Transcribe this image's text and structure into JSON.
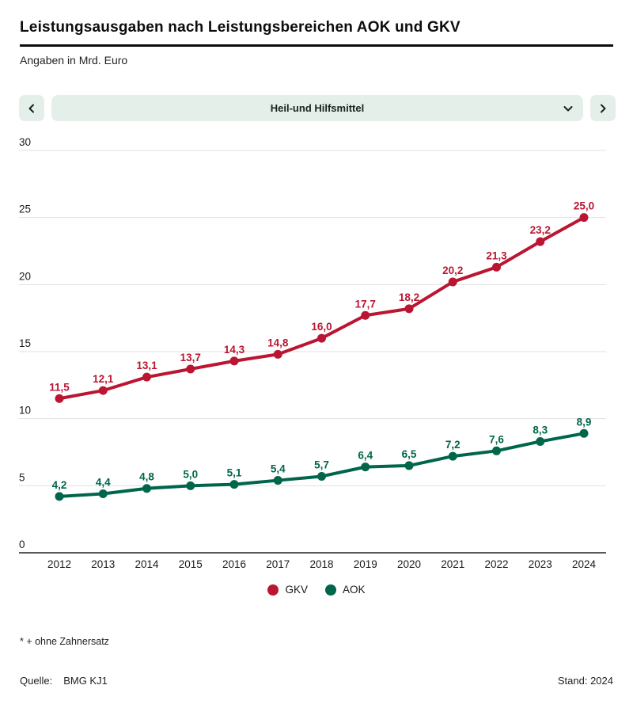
{
  "header": {
    "title": "Leistungsausgaben nach Leistungsbereichen AOK und GKV",
    "subtitle": "Angaben in Mrd. Euro"
  },
  "selector": {
    "selected_option": "Heil-und Hilfsmittel",
    "prev_icon": "chevron-left",
    "next_icon": "chevron-right",
    "open_icon": "chevron-down"
  },
  "chart_data": {
    "type": "line",
    "x": [
      "2012",
      "2013",
      "2014",
      "2015",
      "2016",
      "2017",
      "2018",
      "2019",
      "2020",
      "2021",
      "2022",
      "2023",
      "2024"
    ],
    "series": [
      {
        "name": "GKV",
        "color": "#ba1632",
        "values": [
          11.5,
          12.1,
          13.1,
          13.7,
          14.3,
          14.8,
          16.0,
          17.7,
          18.2,
          20.2,
          21.3,
          23.2,
          25.0
        ]
      },
      {
        "name": "AOK",
        "color": "#00664b",
        "values": [
          4.2,
          4.4,
          4.8,
          5.0,
          5.1,
          5.4,
          5.7,
          6.4,
          6.5,
          7.2,
          7.6,
          8.3,
          8.9
        ]
      }
    ],
    "ylim": [
      0,
      30
    ],
    "ytick_step": 5,
    "grid": true,
    "decimal_separator": ",",
    "legend_position": "bottom",
    "title": "Leistungsausgaben nach Leistungsbereichen AOK und GKV",
    "xlabel": "",
    "ylabel": "Mrd. Euro"
  },
  "footnote": "* + ohne Zahnersatz",
  "footer": {
    "source_label": "Quelle:",
    "source_value": "BMG KJ1",
    "stand": "Stand: 2024"
  }
}
